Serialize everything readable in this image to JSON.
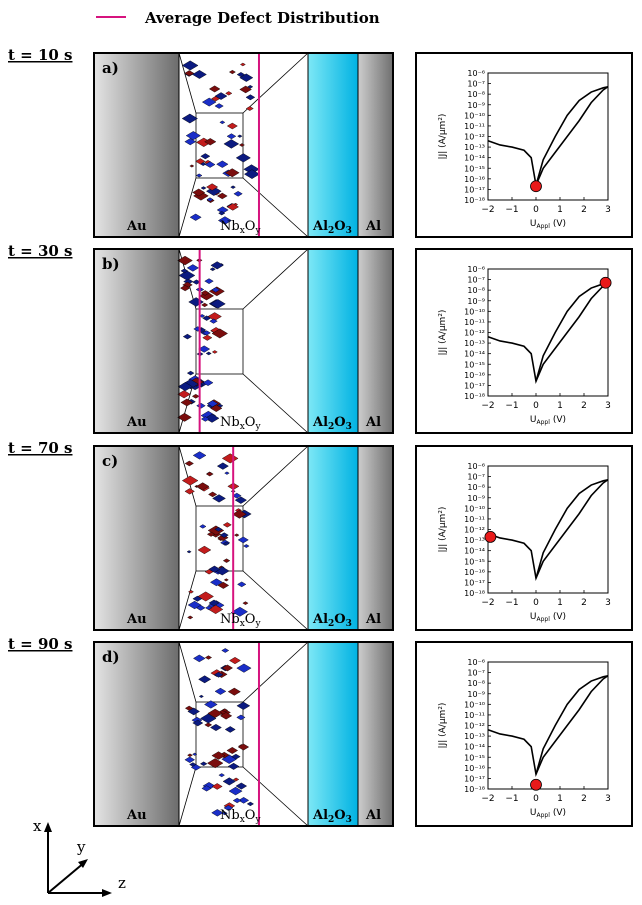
{
  "legend": {
    "label": "Average Defect Distribution",
    "color": "#d6137e"
  },
  "layers": {
    "left": "Au",
    "oxide_main": "Nb",
    "oxide_sub1": "x",
    "oxide_mid": "O",
    "oxide_sub2": "y",
    "barrier_main": "Al",
    "barrier_sub1": "2",
    "barrier_mid": "O",
    "barrier_sub2": "3",
    "right": "Al"
  },
  "iv_axis": {
    "ylabel": "|J| (A/μm²)",
    "xlabel_main": "U",
    "xlabel_sub": "Appl",
    "xlabel_unit": "(V)",
    "x_ticks": [
      "−2",
      "−1",
      "0",
      "1",
      "2",
      "3"
    ],
    "y_ticks": [
      "10⁻⁶",
      "10⁻⁷",
      "10⁻⁸",
      "10⁻⁹",
      "10⁻¹⁰",
      "10⁻¹¹",
      "10⁻¹²",
      "10⁻¹³",
      "10⁻¹⁴",
      "10⁻¹⁵",
      "10⁻¹⁶",
      "10⁻¹⁷",
      "10⁻¹⁸"
    ]
  },
  "axes_triad": {
    "x": "x",
    "y": "y",
    "z": "z"
  },
  "rows": [
    {
      "time": "t = 10 s",
      "label": "a)",
      "avg_defect_pos": 0.62,
      "marker": {
        "U": 0.0,
        "logJ": -16.7
      }
    },
    {
      "time": "t = 30 s",
      "label": "b)",
      "avg_defect_pos": 0.16,
      "marker": {
        "U": 2.9,
        "logJ": -7.3
      }
    },
    {
      "time": "t = 70 s",
      "label": "c)",
      "avg_defect_pos": 0.42,
      "marker": {
        "U": -1.9,
        "logJ": -12.7
      }
    },
    {
      "time": "t = 90 s",
      "label": "d)",
      "avg_defect_pos": 0.62,
      "marker": {
        "U": 0.0,
        "logJ": -17.6
      }
    }
  ],
  "chart_data": {
    "type": "line",
    "xlabel": "U_Appl (V)",
    "ylabel": "|J| (A/μm²)",
    "xlim": [
      -2,
      3
    ],
    "ylim_log10": [
      -18,
      -6
    ],
    "series": [
      {
        "x": [
          -2,
          -1.5,
          -1,
          -0.5,
          -0.2,
          0,
          0.3,
          0.8,
          1.3,
          1.8,
          2.3,
          2.8,
          3.0
        ],
        "log10_y": [
          -12.4,
          -12.8,
          -13.0,
          -13.3,
          -14.0,
          -16.6,
          -15.0,
          -13.5,
          -12.0,
          -10.5,
          -8.8,
          -7.6,
          -7.3
        ]
      },
      {
        "x": [
          0,
          0.3,
          0.8,
          1.3,
          1.8,
          2.3,
          2.8,
          3.0
        ],
        "log10_y": [
          -16.6,
          -14.2,
          -12.0,
          -10.0,
          -8.6,
          -7.8,
          -7.4,
          -7.3
        ]
      }
    ]
  }
}
